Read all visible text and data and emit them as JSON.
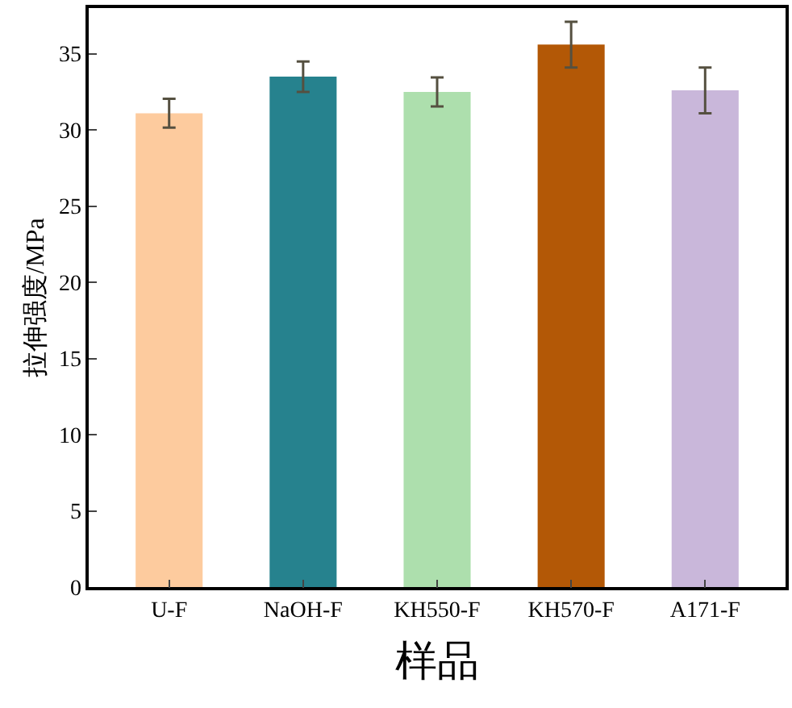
{
  "chart_data": {
    "type": "bar",
    "xlabel": "样品",
    "ylabel": "拉伸强度/MPa",
    "categories": [
      "U-F",
      "NaOH-F",
      "KH550-F",
      "KH570-F",
      "A171-F"
    ],
    "values": [
      31.1,
      33.5,
      32.5,
      35.6,
      32.6
    ],
    "errors": [
      0.95,
      1.0,
      0.95,
      1.5,
      1.5
    ],
    "colors": [
      "#fdcb9e",
      "#26828e",
      "#addfad",
      "#b35806",
      "#c9b7da"
    ],
    "ylim": [
      0,
      38
    ],
    "yticks": [
      0,
      5,
      10,
      15,
      20,
      25,
      30,
      35
    ]
  }
}
